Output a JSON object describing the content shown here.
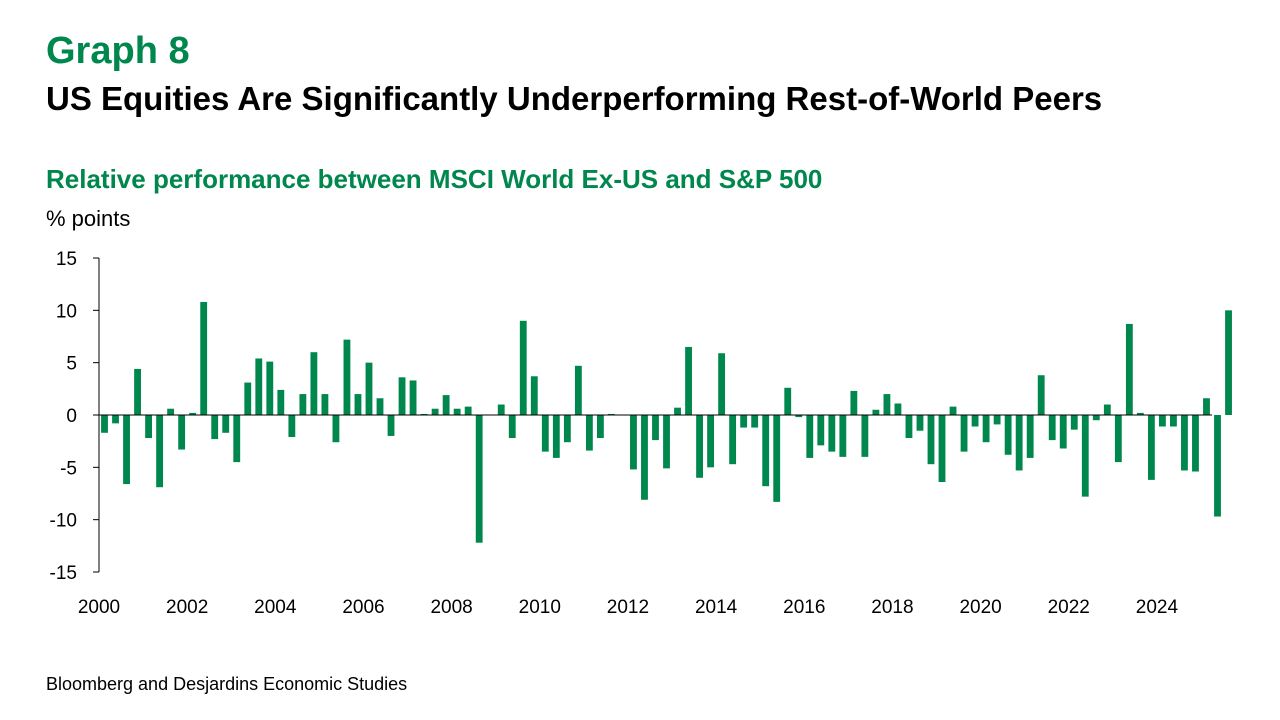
{
  "header": {
    "graph_label": "Graph 8",
    "title": "US Equities Are Significantly Underperforming Rest-of-World Peers"
  },
  "chart_data": {
    "type": "bar",
    "title": "Relative performance between MSCI World Ex-US and S&P 500",
    "ylabel": "% points",
    "xlabel": "",
    "ylim": [
      -15,
      15
    ],
    "y_ticks": [
      15,
      10,
      5,
      0,
      -5,
      -10,
      -15
    ],
    "x_ticks": [
      "2000",
      "2002",
      "2004",
      "2006",
      "2008",
      "2010",
      "2012",
      "2014",
      "2016",
      "2018",
      "2020",
      "2022",
      "2024"
    ],
    "x_start": 2000,
    "x_end": 2025.25,
    "frequency": "quarterly",
    "bar_color": "#00874E",
    "series": [
      {
        "values": [
          -1.7,
          -0.8,
          -6.6,
          4.4,
          -2.2,
          -6.9,
          0.6,
          -3.3,
          0.2,
          10.8,
          -2.3,
          -1.7,
          -4.5,
          3.1,
          5.4,
          5.1,
          2.4,
          -2.1,
          2.0,
          6.0,
          2.0,
          -2.6,
          7.2,
          2.0,
          5.0,
          1.6,
          -2.0,
          3.6,
          3.3,
          0.1,
          0.6,
          1.9,
          0.6,
          0.8,
          -12.2,
          0.0,
          1.0,
          -2.2,
          9.0,
          3.7,
          -3.5,
          -4.1,
          -2.6,
          4.7,
          -3.4,
          -2.2,
          0.1,
          0.0,
          -5.2,
          -8.1,
          -2.4,
          -5.1,
          0.7,
          6.5,
          -6.0,
          -5.0,
          5.9,
          -4.7,
          -1.2,
          -1.2,
          -6.8,
          -8.3,
          2.6,
          -0.2,
          -4.1,
          -2.9,
          -3.5,
          -4.0,
          2.3,
          -4.0,
          0.5,
          2.0,
          1.1,
          -2.2,
          -1.5,
          -4.7,
          -6.4,
          0.8,
          -3.5,
          -1.1,
          -2.6,
          -0.9,
          -3.8,
          -5.3,
          -4.1,
          3.8,
          -2.4,
          -3.2,
          -1.4,
          -7.8,
          -0.5,
          1.0,
          -4.5,
          8.7,
          0.2,
          -6.2,
          -1.1,
          -1.1,
          -5.3,
          -5.4,
          1.6,
          -9.7,
          10.0
        ]
      }
    ]
  },
  "footer": {
    "source": "Bloomberg and Desjardins Economic Studies"
  }
}
